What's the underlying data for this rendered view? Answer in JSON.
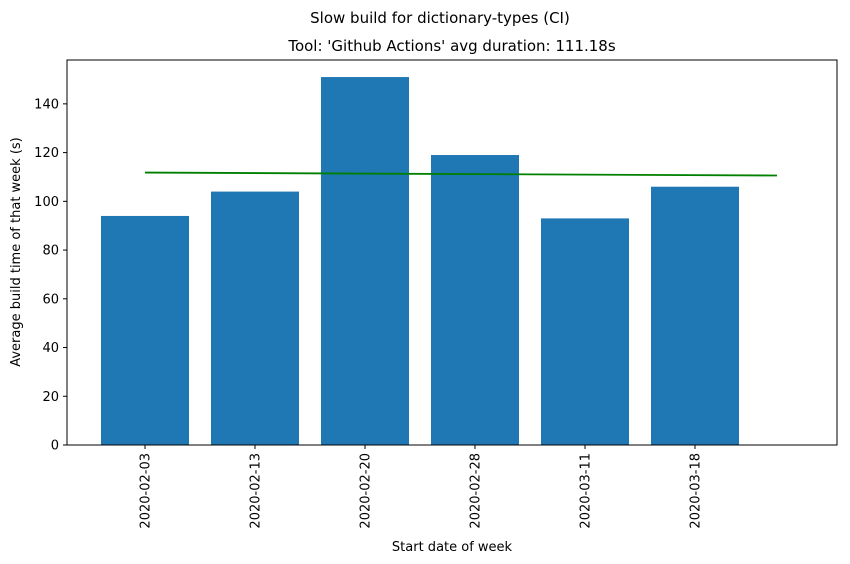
{
  "chart_data": {
    "type": "bar",
    "suptitle": "Slow build for dictionary-types (CI)",
    "title": "Tool: 'Github Actions' avg duration: 111.18s",
    "xlabel": "Start date of week",
    "ylabel": "Average build time of that week (s)",
    "categories": [
      "2020-02-03",
      "2020-02-13",
      "2020-02-20",
      "2020-02-28",
      "2020-03-11",
      "2020-03-18"
    ],
    "values": [
      94,
      104,
      151,
      119,
      93,
      106
    ],
    "bar_color": "#1f77b4",
    "trend": {
      "color": "#008000",
      "start": 111.8,
      "end": 110.6
    },
    "ylim": [
      0,
      158
    ],
    "yticks": [
      0,
      20,
      40,
      60,
      80,
      100,
      120,
      140
    ],
    "grid": false
  }
}
